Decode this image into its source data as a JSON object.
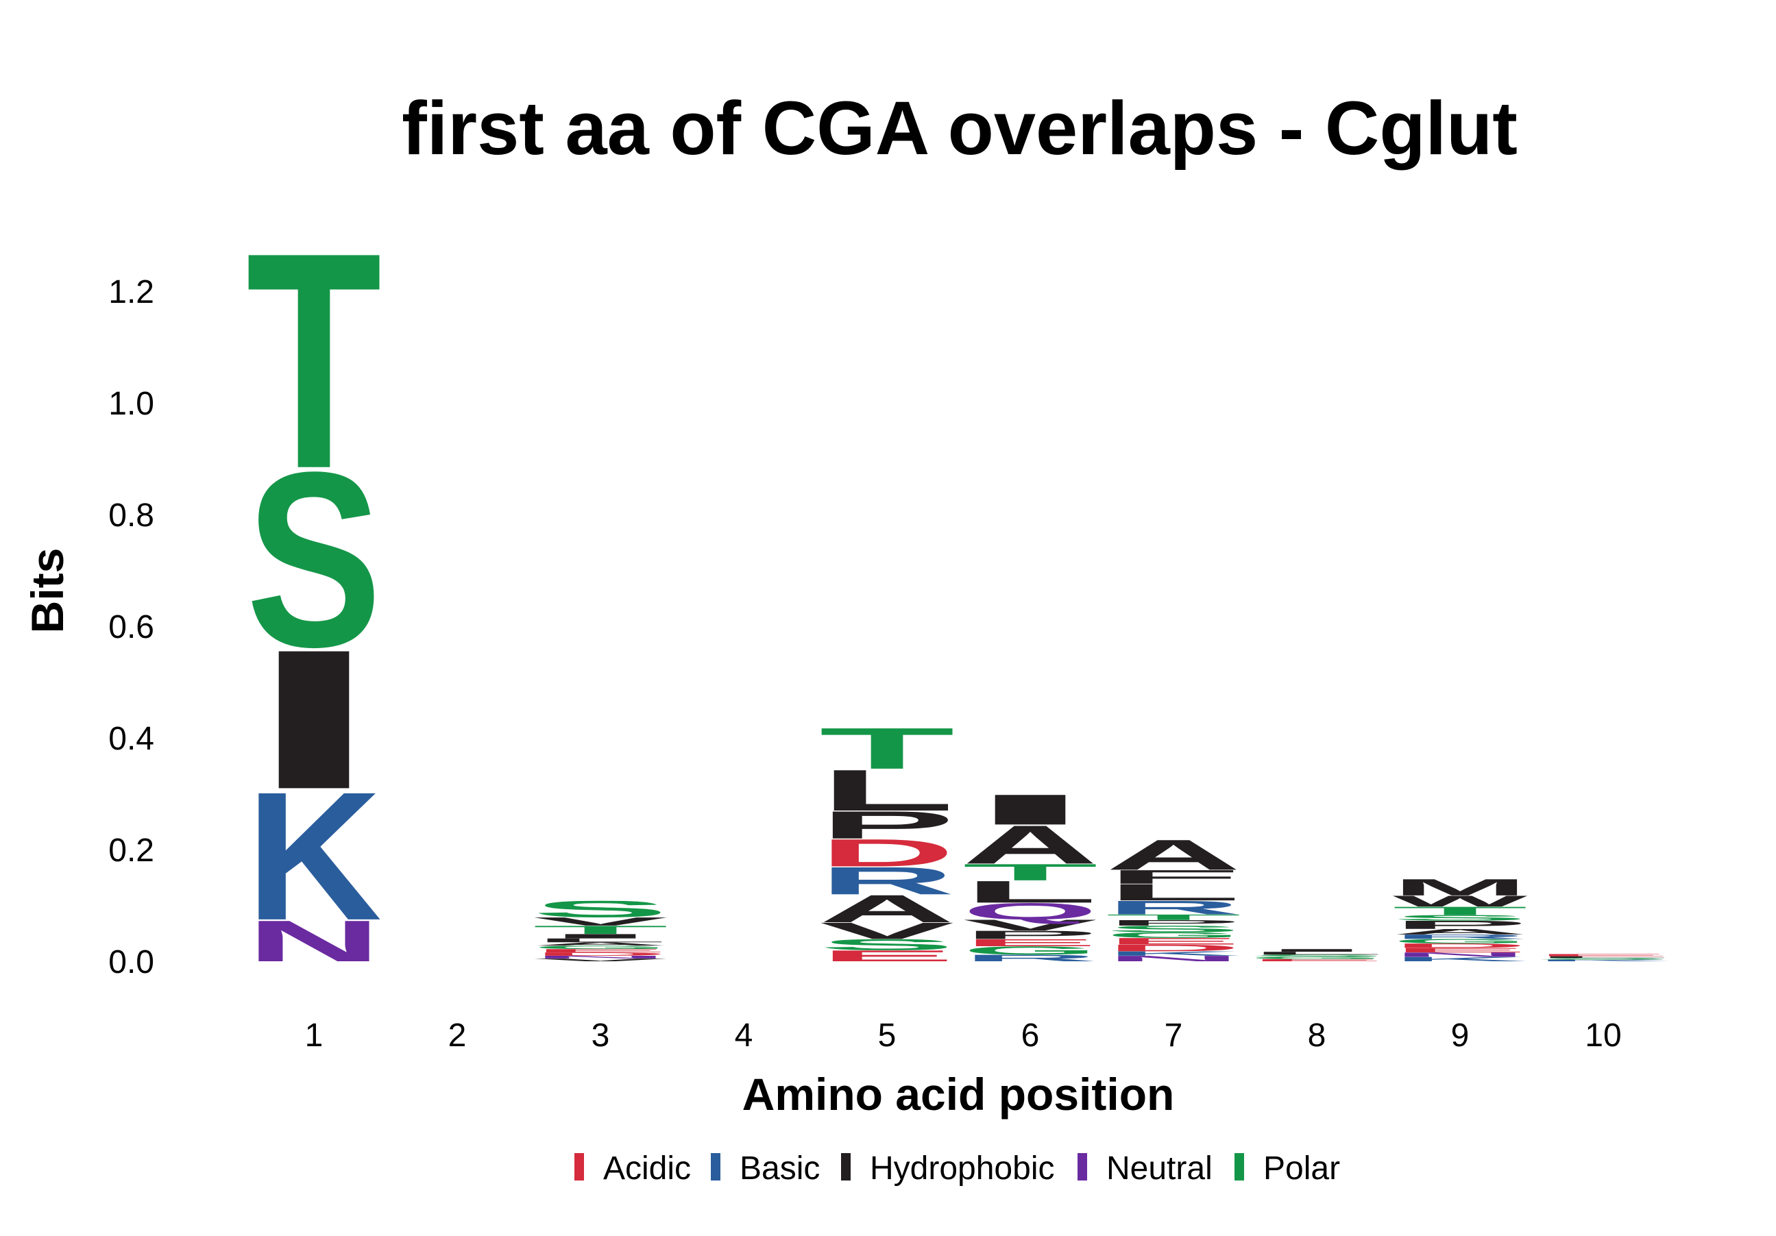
{
  "chart_data": {
    "type": "sequence-logo",
    "title": "first aa of CGA overlaps - Cglut",
    "xlabel": "Amino acid position",
    "ylabel": "Bits",
    "ylim": [
      -0.01,
      1.32
    ],
    "yticks": [
      "0.0",
      "0.2",
      "0.4",
      "0.6",
      "0.8",
      "1.0",
      "1.2"
    ],
    "yticks_values": [
      0.0,
      0.2,
      0.4,
      0.6,
      0.8,
      1.0,
      1.2
    ],
    "categories": [
      "1",
      "2",
      "3",
      "4",
      "5",
      "6",
      "7",
      "8",
      "9",
      "10"
    ],
    "colors": {
      "Acidic": "#d52b3c",
      "Basic": "#2a5d9c",
      "Hydrophobic": "#231f20",
      "Neutral": "#6a2aa0",
      "Polar": "#149648"
    },
    "legend": {
      "placement": "bottom",
      "items": [
        {
          "label": "Acidic",
          "group": "Acidic"
        },
        {
          "label": "Basic",
          "group": "Basic"
        },
        {
          "label": "Hydrophobic",
          "group": "Hydrophobic"
        },
        {
          "label": "Neutral",
          "group": "Neutral"
        },
        {
          "label": "Polar",
          "group": "Polar"
        }
      ]
    },
    "positions": [
      {
        "position": "1",
        "letters": [
          {
            "aa": "N",
            "group": "Neutral",
            "bits": 0.075
          },
          {
            "aa": "K",
            "group": "Basic",
            "bits": 0.235
          },
          {
            "aa": "I",
            "group": "Hydrophobic",
            "bits": 0.255
          },
          {
            "aa": "S",
            "group": "Polar",
            "bits": 0.32
          },
          {
            "aa": "T",
            "group": "Polar",
            "bits": 0.395
          }
        ]
      },
      {
        "position": "2",
        "letters": []
      },
      {
        "position": "3",
        "letters": [
          {
            "aa": "V",
            "group": "Hydrophobic",
            "bits": 0.005
          },
          {
            "aa": "N",
            "group": "Neutral",
            "bits": 0.005
          },
          {
            "aa": "D",
            "group": "Acidic",
            "bits": 0.006
          },
          {
            "aa": "E",
            "group": "Acidic",
            "bits": 0.006
          },
          {
            "aa": "G",
            "group": "Polar",
            "bits": 0.006
          },
          {
            "aa": "A",
            "group": "Hydrophobic",
            "bits": 0.006
          },
          {
            "aa": "L",
            "group": "Hydrophobic",
            "bits": 0.007
          },
          {
            "aa": "I",
            "group": "Hydrophobic",
            "bits": 0.008
          },
          {
            "aa": "T",
            "group": "Polar",
            "bits": 0.015
          },
          {
            "aa": "V",
            "group": "Hydrophobic",
            "bits": 0.015
          },
          {
            "aa": "S",
            "group": "Polar",
            "bits": 0.03
          }
        ]
      },
      {
        "position": "4",
        "letters": []
      },
      {
        "position": "5",
        "letters": [
          {
            "aa": "E",
            "group": "Acidic",
            "bits": 0.02
          },
          {
            "aa": "S",
            "group": "Polar",
            "bits": 0.02
          },
          {
            "aa": "V",
            "group": "Hydrophobic",
            "bits": 0.03
          },
          {
            "aa": "A",
            "group": "Hydrophobic",
            "bits": 0.05
          },
          {
            "aa": "R",
            "group": "Basic",
            "bits": 0.05
          },
          {
            "aa": "D",
            "group": "Acidic",
            "bits": 0.05
          },
          {
            "aa": "P",
            "group": "Hydrophobic",
            "bits": 0.05
          },
          {
            "aa": "L",
            "group": "Hydrophobic",
            "bits": 0.075
          },
          {
            "aa": "T",
            "group": "Polar",
            "bits": 0.075
          }
        ]
      },
      {
        "position": "6",
        "letters": [
          {
            "aa": "R",
            "group": "Basic",
            "bits": 0.012
          },
          {
            "aa": "G",
            "group": "Polar",
            "bits": 0.015
          },
          {
            "aa": "E",
            "group": "Acidic",
            "bits": 0.013
          },
          {
            "aa": "P",
            "group": "Hydrophobic",
            "bits": 0.015
          },
          {
            "aa": "V",
            "group": "Hydrophobic",
            "bits": 0.02
          },
          {
            "aa": "Q",
            "group": "Neutral",
            "bits": 0.03
          },
          {
            "aa": "L",
            "group": "Hydrophobic",
            "bits": 0.04
          },
          {
            "aa": "T",
            "group": "Polar",
            "bits": 0.03
          },
          {
            "aa": "A",
            "group": "Hydrophobic",
            "bits": 0.07
          },
          {
            "aa": "I",
            "group": "Hydrophobic",
            "bits": 0.055
          }
        ]
      },
      {
        "position": "7",
        "letters": [
          {
            "aa": "N",
            "group": "Neutral",
            "bits": 0.01
          },
          {
            "aa": "K",
            "group": "Basic",
            "bits": 0.008
          },
          {
            "aa": "D",
            "group": "Acidic",
            "bits": 0.012
          },
          {
            "aa": "E",
            "group": "Acidic",
            "bits": 0.012
          },
          {
            "aa": "G",
            "group": "Polar",
            "bits": 0.01
          },
          {
            "aa": "S",
            "group": "Polar",
            "bits": 0.012
          },
          {
            "aa": "P",
            "group": "Hydrophobic",
            "bits": 0.01
          },
          {
            "aa": "T",
            "group": "Polar",
            "bits": 0.01
          },
          {
            "aa": "R",
            "group": "Basic",
            "bits": 0.025
          },
          {
            "aa": "L",
            "group": "Hydrophobic",
            "bits": 0.03
          },
          {
            "aa": "F",
            "group": "Hydrophobic",
            "bits": 0.025
          },
          {
            "aa": "A",
            "group": "Hydrophobic",
            "bits": 0.055
          }
        ]
      },
      {
        "position": "8",
        "letters": [
          {
            "aa": "E",
            "group": "Acidic",
            "bits": 0.004
          },
          {
            "aa": "G",
            "group": "Polar",
            "bits": 0.004
          },
          {
            "aa": "S",
            "group": "Polar",
            "bits": 0.004
          },
          {
            "aa": "L",
            "group": "Hydrophobic",
            "bits": 0.005
          },
          {
            "aa": "I",
            "group": "Hydrophobic",
            "bits": 0.005
          }
        ]
      },
      {
        "position": "9",
        "letters": [
          {
            "aa": "K",
            "group": "Basic",
            "bits": 0.008
          },
          {
            "aa": "N",
            "group": "Neutral",
            "bits": 0.008
          },
          {
            "aa": "E",
            "group": "Acidic",
            "bits": 0.008
          },
          {
            "aa": "D",
            "group": "Acidic",
            "bits": 0.008
          },
          {
            "aa": "G",
            "group": "Polar",
            "bits": 0.008
          },
          {
            "aa": "R",
            "group": "Basic",
            "bits": 0.008
          },
          {
            "aa": "A",
            "group": "Hydrophobic",
            "bits": 0.01
          },
          {
            "aa": "P",
            "group": "Hydrophobic",
            "bits": 0.015
          },
          {
            "aa": "S",
            "group": "Polar",
            "bits": 0.01
          },
          {
            "aa": "T",
            "group": "Polar",
            "bits": 0.015
          },
          {
            "aa": "W",
            "group": "Hydrophobic",
            "bits": 0.02
          },
          {
            "aa": "M",
            "group": "Hydrophobic",
            "bits": 0.03
          }
        ]
      },
      {
        "position": "10",
        "letters": [
          {
            "aa": "K",
            "group": "Basic",
            "bits": 0.003
          },
          {
            "aa": "S",
            "group": "Polar",
            "bits": 0.003
          },
          {
            "aa": "L",
            "group": "Hydrophobic",
            "bits": 0.003
          },
          {
            "aa": "E",
            "group": "Acidic",
            "bits": 0.004
          }
        ]
      }
    ]
  }
}
